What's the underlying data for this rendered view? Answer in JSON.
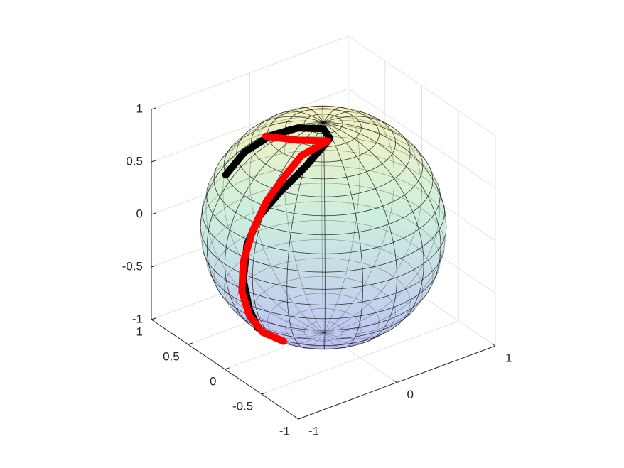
{
  "chart_data": {
    "type": "sphere3d",
    "xlim": [
      -1,
      1
    ],
    "ylim": [
      -1,
      1
    ],
    "zlim": [
      -1,
      1
    ],
    "xticks": [
      -1,
      0,
      1
    ],
    "yticks": [
      -1,
      -0.5,
      0,
      0.5,
      1
    ],
    "zticks": [
      -1,
      -0.5,
      0,
      0.5,
      1
    ],
    "grid": true,
    "series": [
      {
        "color": "#000000",
        "x": [
          -0.73,
          -0.57,
          -0.38,
          -0.2,
          -0.06,
          -0.09,
          -0.41,
          -0.65,
          -0.83,
          -0.94,
          -0.97,
          -0.91,
          -0.77
        ],
        "y": [
          0.35,
          0.31,
          0.22,
          0.08,
          -0.08,
          -0.21,
          -0.3,
          -0.29,
          -0.24,
          -0.22,
          -0.21,
          -0.21,
          -0.14
        ],
        "z": [
          0.59,
          0.77,
          0.9,
          0.98,
          1.0,
          0.98,
          0.86,
          0.71,
          0.51,
          0.27,
          -0.06,
          -0.36,
          -0.62
        ]
      },
      {
        "color": "#ff0000",
        "x": [
          -0.4,
          -0.3,
          -0.12,
          -0.37,
          -0.57,
          -0.75,
          -0.89,
          -0.97,
          -0.97,
          -0.87,
          -0.73,
          -0.63
        ],
        "y": [
          0.25,
          -0.05,
          -0.22,
          -0.2,
          -0.23,
          -0.23,
          -0.23,
          -0.21,
          -0.19,
          -0.16,
          -0.15,
          -0.3
        ],
        "z": [
          0.89,
          0.96,
          0.97,
          0.91,
          0.79,
          0.62,
          0.39,
          0.11,
          -0.18,
          -0.46,
          -0.67,
          -0.72
        ]
      }
    ]
  }
}
